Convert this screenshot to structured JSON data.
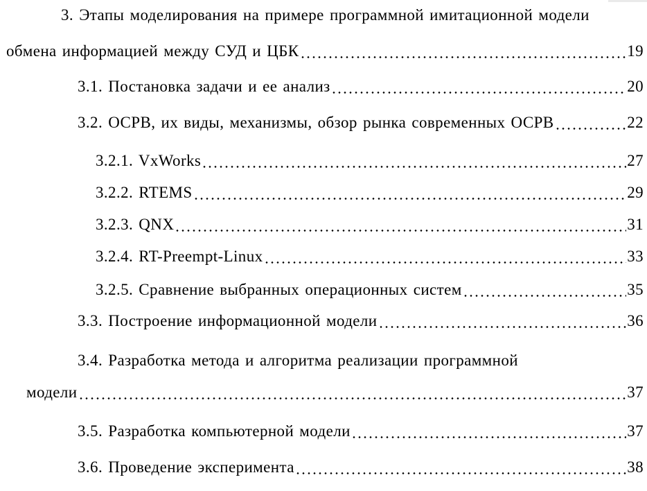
{
  "page": {
    "background_color": "#ffffff",
    "text_color": "#000000"
  },
  "toc": {
    "lines": [
      {
        "text": "3. Этапы моделирования на примере программной имитационной модели",
        "page": "",
        "indent": "first",
        "leader": false
      },
      {
        "text": "обмена информацией между СУД и ЦБК",
        "page": "19",
        "indent": "margin",
        "leader": true
      },
      {
        "text": "3.1. Постановка задачи и ее анализ",
        "page": "20",
        "indent": "main",
        "leader": true
      },
      {
        "text": "3.2. ОСРВ, их виды, механизмы, обзор рынка современных ОСРВ",
        "page": "22",
        "indent": "main",
        "leader": true
      },
      {
        "text": "3.2.1. VxWorks",
        "page": "27",
        "indent": "sub",
        "leader": true
      },
      {
        "text": "3.2.2. RTEMS",
        "page": "29",
        "indent": "sub",
        "leader": true
      },
      {
        "text": "3.2.3. QNX",
        "page": "31",
        "indent": "sub",
        "leader": true
      },
      {
        "text": "3.2.4. RT-Preempt-Linux",
        "page": "33",
        "indent": "sub",
        "leader": true
      },
      {
        "text": "3.2.5. Сравнение выбранных операционных систем",
        "page": "35",
        "indent": "sub",
        "leader": true
      },
      {
        "text": "3.3. Построение информационной модели",
        "page": "36",
        "indent": "main",
        "leader": true
      },
      {
        "text": "3.4. Разработка метода и алгоритма реализации программной",
        "page": "",
        "indent": "main",
        "leader": false
      },
      {
        "text": "модели",
        "page": "37",
        "indent": "cont",
        "leader": true
      },
      {
        "text": "3.5. Разработка компьютерной модели",
        "page": "37",
        "indent": "main",
        "leader": true
      },
      {
        "text": "3.6. Проведение эксперимента",
        "page": "38",
        "indent": "main",
        "leader": true
      }
    ]
  }
}
